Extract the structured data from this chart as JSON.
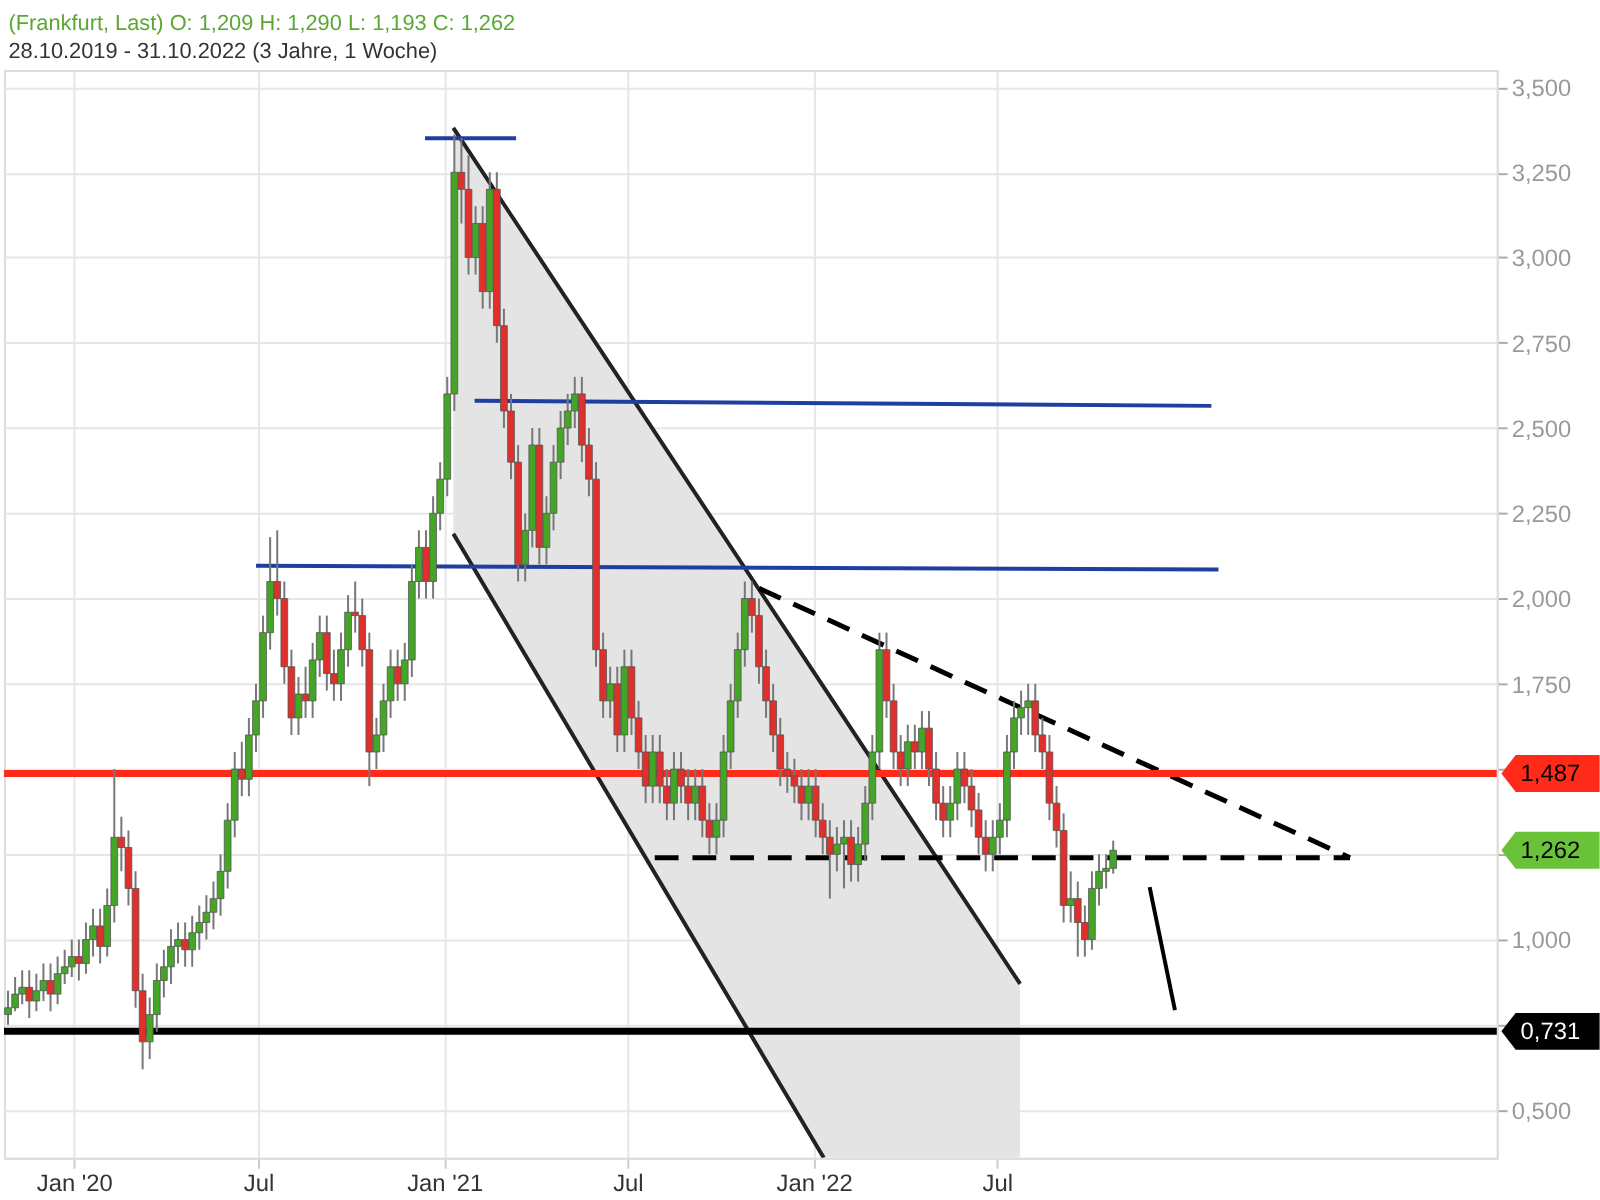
{
  "chart_data": {
    "type": "candlestick",
    "title": "(Frankfurt, Last)  O: 1,209  H: 1,290  L: 1,193  C: 1,262",
    "subtitle": "28.10.2019 - 31.10.2022   (3 Jahre, 1 Woche)",
    "x": [
      "2019-10-28",
      "2019-11-04",
      "2019-11-11",
      "2019-11-18",
      "2019-11-25",
      "2019-12-02",
      "2019-12-09",
      "2019-12-16",
      "2019-12-23",
      "2019-12-30",
      "2020-01-06",
      "2020-01-13",
      "2020-01-20",
      "2020-01-27",
      "2020-02-03",
      "2020-02-10",
      "2020-02-17",
      "2020-02-24",
      "2020-03-02",
      "2020-03-09",
      "2020-03-16",
      "2020-03-23",
      "2020-03-30",
      "2020-04-06",
      "2020-04-13",
      "2020-04-20",
      "2020-04-27",
      "2020-05-04",
      "2020-05-11",
      "2020-05-18",
      "2020-05-25",
      "2020-06-01",
      "2020-06-08",
      "2020-06-15",
      "2020-06-22",
      "2020-06-29",
      "2020-07-06",
      "2020-07-13",
      "2020-07-20",
      "2020-07-27",
      "2020-08-03",
      "2020-08-10",
      "2020-08-17",
      "2020-08-24",
      "2020-08-31",
      "2020-09-07",
      "2020-09-14",
      "2020-09-21",
      "2020-09-28",
      "2020-10-05",
      "2020-10-12",
      "2020-10-19",
      "2020-10-26",
      "2020-11-02",
      "2020-11-09",
      "2020-11-16",
      "2020-11-23",
      "2020-11-30",
      "2020-12-07",
      "2020-12-14",
      "2020-12-21",
      "2020-12-28",
      "2021-01-04",
      "2021-01-11",
      "2021-01-18",
      "2021-01-25",
      "2021-02-01",
      "2021-02-08",
      "2021-02-15",
      "2021-02-22",
      "2021-03-01",
      "2021-03-08",
      "2021-03-15",
      "2021-03-22",
      "2021-03-29",
      "2021-04-05",
      "2021-04-12",
      "2021-04-19",
      "2021-04-26",
      "2021-05-03",
      "2021-05-10",
      "2021-05-17",
      "2021-05-24",
      "2021-05-31",
      "2021-06-07",
      "2021-06-14",
      "2021-06-21",
      "2021-06-28",
      "2021-07-05",
      "2021-07-12",
      "2021-07-19",
      "2021-07-26",
      "2021-08-02",
      "2021-08-09",
      "2021-08-16",
      "2021-08-23",
      "2021-08-30",
      "2021-09-06",
      "2021-09-13",
      "2021-09-20",
      "2021-09-27",
      "2021-10-04",
      "2021-10-11",
      "2021-10-18",
      "2021-10-25",
      "2021-11-01",
      "2021-11-08",
      "2021-11-15",
      "2021-11-22",
      "2021-11-29",
      "2021-12-06",
      "2021-12-13",
      "2021-12-20",
      "2021-12-27",
      "2022-01-03",
      "2022-01-10",
      "2022-01-17",
      "2022-01-24",
      "2022-01-31",
      "2022-02-07",
      "2022-02-14",
      "2022-02-21",
      "2022-02-28",
      "2022-03-07",
      "2022-03-14",
      "2022-03-21",
      "2022-03-28",
      "2022-04-04",
      "2022-04-11",
      "2022-04-18",
      "2022-04-25",
      "2022-05-02",
      "2022-05-09",
      "2022-05-16",
      "2022-05-23",
      "2022-05-30",
      "2022-06-06",
      "2022-06-13",
      "2022-06-20",
      "2022-06-27",
      "2022-07-04",
      "2022-07-11",
      "2022-07-18",
      "2022-07-25",
      "2022-08-01",
      "2022-08-08",
      "2022-08-15",
      "2022-08-22",
      "2022-08-29",
      "2022-09-05",
      "2022-09-12",
      "2022-09-19",
      "2022-09-26",
      "2022-10-03",
      "2022-10-10",
      "2022-10-17",
      "2022-10-24"
    ],
    "ohlc": [
      [
        0.78,
        0.85,
        0.75,
        0.8
      ],
      [
        0.8,
        0.89,
        0.79,
        0.84
      ],
      [
        0.84,
        0.91,
        0.81,
        0.86
      ],
      [
        0.86,
        0.91,
        0.77,
        0.82
      ],
      [
        0.82,
        0.9,
        0.79,
        0.85
      ],
      [
        0.85,
        0.93,
        0.82,
        0.88
      ],
      [
        0.88,
        0.93,
        0.79,
        0.84
      ],
      [
        0.84,
        0.95,
        0.81,
        0.9
      ],
      [
        0.9,
        0.97,
        0.87,
        0.92
      ],
      [
        0.92,
        1.0,
        0.89,
        0.95
      ],
      [
        0.95,
        1.0,
        0.88,
        0.93
      ],
      [
        0.93,
        1.05,
        0.9,
        1.0
      ],
      [
        1.0,
        1.09,
        0.95,
        1.04
      ],
      [
        1.04,
        1.09,
        0.93,
        0.98
      ],
      [
        0.98,
        1.15,
        0.95,
        1.1
      ],
      [
        1.1,
        1.5,
        1.05,
        1.3
      ],
      [
        1.3,
        1.36,
        1.2,
        1.27
      ],
      [
        1.27,
        1.32,
        1.1,
        1.15
      ],
      [
        1.15,
        1.2,
        0.8,
        0.85
      ],
      [
        0.85,
        0.9,
        0.62,
        0.7
      ],
      [
        0.7,
        0.83,
        0.65,
        0.78
      ],
      [
        0.78,
        0.93,
        0.73,
        0.88
      ],
      [
        0.88,
        0.97,
        0.83,
        0.92
      ],
      [
        0.92,
        1.03,
        0.87,
        0.98
      ],
      [
        0.98,
        1.05,
        0.93,
        1.0
      ],
      [
        1.0,
        1.05,
        0.92,
        0.97
      ],
      [
        0.97,
        1.07,
        0.92,
        1.02
      ],
      [
        1.02,
        1.1,
        0.97,
        1.05
      ],
      [
        1.05,
        1.13,
        1.0,
        1.08
      ],
      [
        1.08,
        1.17,
        1.03,
        1.12
      ],
      [
        1.12,
        1.25,
        1.07,
        1.2
      ],
      [
        1.2,
        1.4,
        1.15,
        1.35
      ],
      [
        1.35,
        1.55,
        1.3,
        1.5
      ],
      [
        1.5,
        1.58,
        1.42,
        1.47
      ],
      [
        1.47,
        1.65,
        1.42,
        1.6
      ],
      [
        1.6,
        1.75,
        1.55,
        1.7
      ],
      [
        1.7,
        1.95,
        1.65,
        1.9
      ],
      [
        1.9,
        2.18,
        1.85,
        2.05
      ],
      [
        2.05,
        2.2,
        1.95,
        2.0
      ],
      [
        2.0,
        2.05,
        1.75,
        1.8
      ],
      [
        1.8,
        1.85,
        1.6,
        1.65
      ],
      [
        1.65,
        1.77,
        1.6,
        1.72
      ],
      [
        1.72,
        1.8,
        1.65,
        1.7
      ],
      [
        1.7,
        1.87,
        1.65,
        1.82
      ],
      [
        1.82,
        1.95,
        1.77,
        1.9
      ],
      [
        1.9,
        1.95,
        1.73,
        1.78
      ],
      [
        1.78,
        1.85,
        1.7,
        1.75
      ],
      [
        1.75,
        1.9,
        1.7,
        1.85
      ],
      [
        1.85,
        2.01,
        1.8,
        1.96
      ],
      [
        1.96,
        2.05,
        1.9,
        1.95
      ],
      [
        1.95,
        2.0,
        1.8,
        1.85
      ],
      [
        1.85,
        1.9,
        1.45,
        1.55
      ],
      [
        1.55,
        1.65,
        1.5,
        1.6
      ],
      [
        1.6,
        1.75,
        1.55,
        1.7
      ],
      [
        1.7,
        1.85,
        1.65,
        1.8
      ],
      [
        1.8,
        1.85,
        1.7,
        1.75
      ],
      [
        1.75,
        1.87,
        1.7,
        1.82
      ],
      [
        1.82,
        2.1,
        1.77,
        2.05
      ],
      [
        2.05,
        2.2,
        2.0,
        2.15
      ],
      [
        2.15,
        2.2,
        2.0,
        2.05
      ],
      [
        2.05,
        2.3,
        2.0,
        2.25
      ],
      [
        2.25,
        2.4,
        2.2,
        2.35
      ],
      [
        2.35,
        2.65,
        2.3,
        2.6
      ],
      [
        2.6,
        3.36,
        2.55,
        3.25
      ],
      [
        3.25,
        3.35,
        3.1,
        3.2
      ],
      [
        3.2,
        3.3,
        2.95,
        3.0
      ],
      [
        3.0,
        3.15,
        2.95,
        3.1
      ],
      [
        3.1,
        3.15,
        2.85,
        2.9
      ],
      [
        2.9,
        3.25,
        2.85,
        3.2
      ],
      [
        3.2,
        3.25,
        2.75,
        2.8
      ],
      [
        2.8,
        2.85,
        2.5,
        2.55
      ],
      [
        2.55,
        2.6,
        2.35,
        2.4
      ],
      [
        2.4,
        2.45,
        2.05,
        2.1
      ],
      [
        2.1,
        2.25,
        2.05,
        2.2
      ],
      [
        2.2,
        2.5,
        2.15,
        2.45
      ],
      [
        2.45,
        2.5,
        2.1,
        2.15
      ],
      [
        2.15,
        2.3,
        2.1,
        2.25
      ],
      [
        2.25,
        2.45,
        2.2,
        2.4
      ],
      [
        2.4,
        2.55,
        2.35,
        2.5
      ],
      [
        2.5,
        2.6,
        2.45,
        2.55
      ],
      [
        2.55,
        2.65,
        2.5,
        2.6
      ],
      [
        2.6,
        2.65,
        2.4,
        2.45
      ],
      [
        2.45,
        2.5,
        2.3,
        2.35
      ],
      [
        2.35,
        2.4,
        1.8,
        1.85
      ],
      [
        1.85,
        1.9,
        1.65,
        1.7
      ],
      [
        1.7,
        1.8,
        1.65,
        1.75
      ],
      [
        1.75,
        1.8,
        1.55,
        1.6
      ],
      [
        1.6,
        1.85,
        1.55,
        1.8
      ],
      [
        1.8,
        1.85,
        1.6,
        1.65
      ],
      [
        1.65,
        1.7,
        1.5,
        1.55
      ],
      [
        1.55,
        1.6,
        1.4,
        1.45
      ],
      [
        1.45,
        1.6,
        1.4,
        1.55
      ],
      [
        1.55,
        1.6,
        1.4,
        1.45
      ],
      [
        1.45,
        1.5,
        1.35,
        1.4
      ],
      [
        1.4,
        1.55,
        1.35,
        1.5
      ],
      [
        1.5,
        1.55,
        1.4,
        1.45
      ],
      [
        1.45,
        1.5,
        1.35,
        1.4
      ],
      [
        1.4,
        1.5,
        1.35,
        1.45
      ],
      [
        1.45,
        1.5,
        1.3,
        1.35
      ],
      [
        1.35,
        1.4,
        1.25,
        1.3
      ],
      [
        1.3,
        1.4,
        1.25,
        1.35
      ],
      [
        1.35,
        1.6,
        1.3,
        1.55
      ],
      [
        1.55,
        1.75,
        1.5,
        1.7
      ],
      [
        1.7,
        1.9,
        1.65,
        1.85
      ],
      [
        1.85,
        2.05,
        1.8,
        2.0
      ],
      [
        2.0,
        2.05,
        1.9,
        1.95
      ],
      [
        1.95,
        2.0,
        1.75,
        1.8
      ],
      [
        1.8,
        1.85,
        1.65,
        1.7
      ],
      [
        1.7,
        1.75,
        1.55,
        1.6
      ],
      [
        1.6,
        1.65,
        1.45,
        1.5
      ],
      [
        1.5,
        1.55,
        1.43,
        1.48
      ],
      [
        1.48,
        1.53,
        1.4,
        1.45
      ],
      [
        1.45,
        1.5,
        1.35,
        1.4
      ],
      [
        1.4,
        1.5,
        1.35,
        1.45
      ],
      [
        1.45,
        1.5,
        1.3,
        1.35
      ],
      [
        1.35,
        1.4,
        1.25,
        1.3
      ],
      [
        1.3,
        1.35,
        1.12,
        1.25
      ],
      [
        1.25,
        1.33,
        1.2,
        1.28
      ],
      [
        1.28,
        1.35,
        1.15,
        1.3
      ],
      [
        1.3,
        1.35,
        1.17,
        1.22
      ],
      [
        1.22,
        1.33,
        1.17,
        1.28
      ],
      [
        1.28,
        1.45,
        1.23,
        1.4
      ],
      [
        1.4,
        1.6,
        1.35,
        1.55
      ],
      [
        1.55,
        1.9,
        1.5,
        1.85
      ],
      [
        1.85,
        1.9,
        1.65,
        1.7
      ],
      [
        1.7,
        1.75,
        1.5,
        1.55
      ],
      [
        1.55,
        1.6,
        1.45,
        1.5
      ],
      [
        1.5,
        1.63,
        1.45,
        1.58
      ],
      [
        1.58,
        1.63,
        1.5,
        1.55
      ],
      [
        1.55,
        1.67,
        1.5,
        1.62
      ],
      [
        1.62,
        1.67,
        1.45,
        1.5
      ],
      [
        1.5,
        1.55,
        1.35,
        1.4
      ],
      [
        1.4,
        1.45,
        1.3,
        1.35
      ],
      [
        1.35,
        1.45,
        1.3,
        1.4
      ],
      [
        1.4,
        1.55,
        1.35,
        1.5
      ],
      [
        1.5,
        1.55,
        1.4,
        1.45
      ],
      [
        1.45,
        1.5,
        1.33,
        1.38
      ],
      [
        1.38,
        1.43,
        1.25,
        1.3
      ],
      [
        1.3,
        1.35,
        1.2,
        1.25
      ],
      [
        1.25,
        1.35,
        1.2,
        1.3
      ],
      [
        1.3,
        1.4,
        1.25,
        1.35
      ],
      [
        1.35,
        1.6,
        1.3,
        1.55
      ],
      [
        1.55,
        1.7,
        1.5,
        1.65
      ],
      [
        1.65,
        1.73,
        1.6,
        1.68
      ],
      [
        1.68,
        1.75,
        1.6,
        1.7
      ],
      [
        1.7,
        1.75,
        1.55,
        1.6
      ],
      [
        1.6,
        1.65,
        1.5,
        1.55
      ],
      [
        1.55,
        1.6,
        1.35,
        1.4
      ],
      [
        1.4,
        1.45,
        1.27,
        1.32
      ],
      [
        1.32,
        1.37,
        1.05,
        1.1
      ],
      [
        1.1,
        1.2,
        1.05,
        1.12
      ],
      [
        1.12,
        1.17,
        0.95,
        1.05
      ],
      [
        1.05,
        1.1,
        0.95,
        1.0
      ],
      [
        1.0,
        1.2,
        0.97,
        1.15
      ],
      [
        1.15,
        1.25,
        1.1,
        1.2
      ],
      [
        1.2,
        1.25,
        1.15,
        1.209
      ],
      [
        1.209,
        1.29,
        1.193,
        1.262
      ]
    ],
    "series": [
      {
        "type": "line",
        "color": "#222222",
        "x": [
          "2021-01-10",
          "2022-01-11",
          "2022-07-24"
        ],
        "values": [
          3.38,
          1.74,
          0.87
        ],
        "lower": [
          2.19,
          0.36,
          0.36
        ],
        "upper": [
          3.38,
          1.74,
          0.87
        ]
      },
      {
        "type": "line",
        "color": "#222222",
        "x": [
          "2021-01-10",
          "2022-01-11"
        ],
        "values": [
          2.19,
          0.36
        ]
      },
      {
        "type": "line",
        "color": "#1f3fa0",
        "x": [
          "2020-12-13",
          "2021-03-13"
        ],
        "values": [
          3.35,
          3.35
        ]
      },
      {
        "type": "line",
        "color": "#1f3fa0",
        "x": [
          "2021-01-31",
          "2023-01-29"
        ],
        "values": [
          2.58,
          2.565
        ]
      },
      {
        "type": "line",
        "color": "#1f3fa0",
        "x": [
          "2020-06-29",
          "2023-02-05"
        ],
        "values": [
          2.096,
          2.085
        ]
      },
      {
        "type": "line",
        "color": "#000000",
        "line_style": "dashed",
        "x": [
          "2021-11-08",
          "2023-06-15"
        ],
        "values": [
          2.03,
          1.24
        ]
      },
      {
        "type": "line",
        "color": "#000000",
        "line_style": "dashed",
        "x": [
          "2021-07-28",
          "2023-06-15"
        ],
        "values": [
          1.24,
          1.24
        ]
      },
      {
        "type": "line",
        "color": "#000000",
        "x": [
          "2022-11-29",
          "2022-12-24"
        ],
        "values": [
          1.154,
          0.793
        ]
      }
    ],
    "ref_lines": [
      {
        "axis": "y",
        "value": 1.487,
        "label": "1,487",
        "color": "#ff2a1a"
      },
      {
        "axis": "y",
        "value": 0.731,
        "label": "0,731",
        "color": "#000000"
      }
    ],
    "annotations": [
      "1,262"
    ],
    "xlim": [
      "2019-10-24",
      "2023-11-07"
    ],
    "xticks": [
      {
        "value": "2020-01-01",
        "label": "Jan '20"
      },
      {
        "value": "2020-07-01",
        "label": "Jul"
      },
      {
        "value": "2021-01-01",
        "label": "Jan '21"
      },
      {
        "value": "2021-07-01",
        "label": "Jul"
      },
      {
        "value": "2022-01-01",
        "label": "Jan '22"
      },
      {
        "value": "2022-07-01",
        "label": "Jul"
      }
    ],
    "ylim": [
      0.36,
      3.55
    ],
    "yticks": [
      {
        "value": 0.5,
        "label": "0,500"
      },
      {
        "value": 0.75,
        "label": null
      },
      {
        "value": 1.0,
        "label": "1,000"
      },
      {
        "value": 1.25,
        "label": null
      },
      {
        "value": 1.5,
        "label": null
      },
      {
        "value": 1.75,
        "label": "1,750"
      },
      {
        "value": 2.0,
        "label": "2,000"
      },
      {
        "value": 2.25,
        "label": "2,250"
      },
      {
        "value": 2.5,
        "label": "2,500"
      },
      {
        "value": 2.75,
        "label": "2,750"
      },
      {
        "value": 3.0,
        "label": "3,000"
      },
      {
        "value": 3.25,
        "label": "3,250"
      },
      {
        "value": 3.5,
        "label": "3,500"
      }
    ],
    "grid": true
  }
}
